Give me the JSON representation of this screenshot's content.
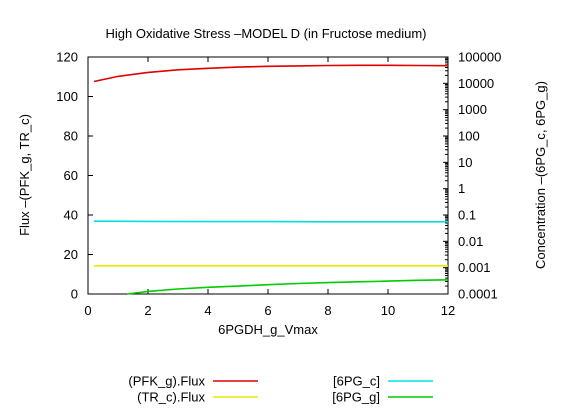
{
  "chart_data": {
    "type": "line",
    "title": "High Oxidative Stress –MODEL D (in Fructose medium)",
    "xlabel": "6PGDH_g_Vmax",
    "ylabel_left": "Flux –(PFK_g, TR_c)",
    "ylabel_right": "Concentration –(6PG_c, 6PG_g)",
    "xlim": [
      0,
      12
    ],
    "ylim_left": [
      0,
      120
    ],
    "ylim_right_log": [
      0.0001,
      100000
    ],
    "x_ticks": [
      0,
      2,
      4,
      6,
      8,
      10,
      12
    ],
    "y_left_ticks": [
      0,
      20,
      40,
      60,
      80,
      100,
      120
    ],
    "y_right_tick_values": [
      0.0001,
      0.001,
      0.01,
      0.1,
      1,
      10,
      100,
      1000,
      10000,
      100000
    ],
    "y_right_tick_labels": [
      "0.0001",
      "0.001",
      "0.01",
      "0.1",
      "1",
      "10",
      "100",
      "1000",
      "10000",
      "100000"
    ],
    "grid": false,
    "legend_position": "bottom",
    "series": [
      {
        "name": "(PFK_g).Flux",
        "axis": "left",
        "color": "#e00000",
        "x": [
          0.2,
          1,
          2,
          3,
          4,
          5,
          6,
          7,
          8,
          9,
          10,
          11,
          12
        ],
        "y": [
          107.6,
          110.2,
          112.2,
          113.5,
          114.3,
          114.9,
          115.3,
          115.5,
          115.7,
          115.8,
          115.8,
          115.7,
          115.6
        ]
      },
      {
        "name": "(TR_c).Flux",
        "axis": "left",
        "color": "#e8e800",
        "x": [
          0.2,
          12
        ],
        "y": [
          14.3,
          14.3
        ]
      },
      {
        "name": "[6PG_c]",
        "axis": "right",
        "color": "#00e0e0",
        "x": [
          0.2,
          2,
          4,
          6,
          8,
          10,
          12
        ],
        "y": [
          0.058,
          0.057,
          0.056,
          0.056,
          0.055,
          0.055,
          0.055
        ]
      },
      {
        "name": "[6PG_g]",
        "axis": "right",
        "color": "#00cc00",
        "x": [
          1.3,
          2,
          3,
          4,
          5,
          6,
          7,
          8,
          9,
          10,
          11,
          12
        ],
        "y": [
          0.0001,
          0.000125,
          0.000155,
          0.00018,
          0.0002,
          0.000225,
          0.00025,
          0.00027,
          0.00029,
          0.00031,
          0.00033,
          0.000345
        ]
      }
    ]
  }
}
